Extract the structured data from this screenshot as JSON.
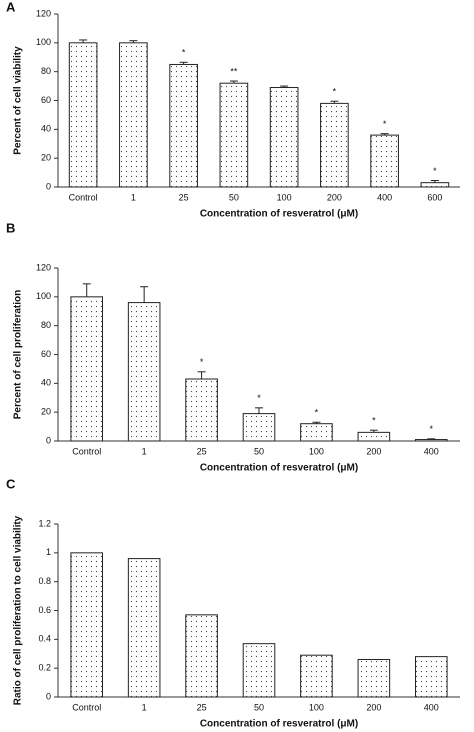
{
  "chart_data": [
    {
      "type": "bar",
      "label": "A",
      "ylabel": "Percent of cell viability",
      "xlabel": "Concentration of resveratrol (μM)",
      "categories": [
        "Control",
        "1",
        "25",
        "50",
        "100",
        "200",
        "400",
        "600"
      ],
      "values": [
        100,
        100,
        85,
        72,
        69,
        58,
        36,
        3
      ],
      "errors": [
        2,
        1.5,
        1.5,
        1.5,
        1,
        1.5,
        1,
        1.5
      ],
      "annotations": [
        null,
        null,
        "*",
        "**",
        null,
        "*",
        "*",
        "*"
      ],
      "ylim": [
        0,
        120
      ],
      "yticks": [
        0,
        20,
        40,
        60,
        80,
        100,
        120
      ]
    },
    {
      "type": "bar",
      "label": "B",
      "ylabel": "Percent of cell proliferation",
      "xlabel": "Concentration of resveratrol (μM)",
      "categories": [
        "Control",
        "1",
        "25",
        "50",
        "100",
        "200",
        "400"
      ],
      "values": [
        100,
        96,
        43,
        19,
        12,
        6,
        1
      ],
      "errors": [
        9,
        11,
        5,
        4,
        1,
        1.5,
        0.5
      ],
      "annotations": [
        null,
        null,
        "*",
        "*",
        "*",
        "*",
        "*"
      ],
      "ylim": [
        0,
        120
      ],
      "yticks": [
        0,
        20,
        40,
        60,
        80,
        100,
        120
      ]
    },
    {
      "type": "bar",
      "label": "C",
      "ylabel": "Ratio of cell proliferation to cell viability",
      "xlabel": "Concentration of resveratrol (μM)",
      "categories": [
        "Control",
        "1",
        "25",
        "50",
        "100",
        "200",
        "400"
      ],
      "values": [
        1,
        0.96,
        0.57,
        0.37,
        0.29,
        0.26,
        0.28
      ],
      "ylim": [
        0,
        1.2
      ],
      "yticks": [
        0,
        0.2,
        0.4,
        0.6,
        0.8,
        1,
        1.2
      ]
    }
  ]
}
